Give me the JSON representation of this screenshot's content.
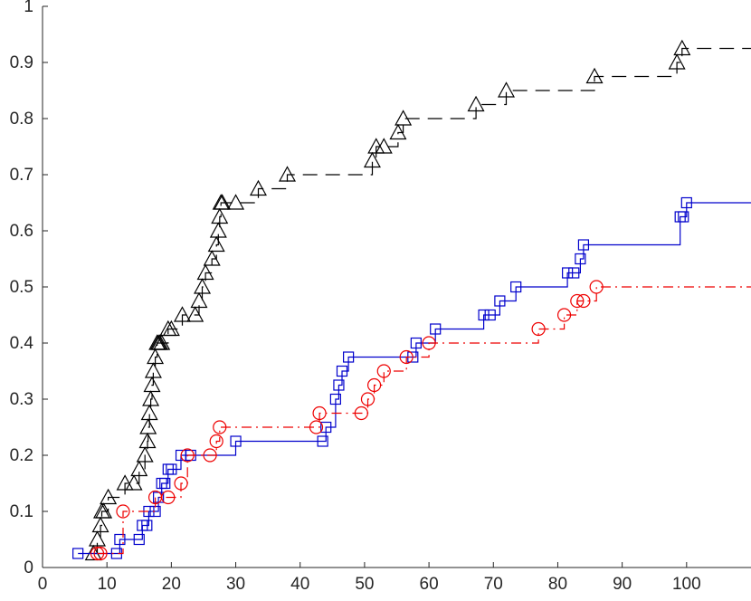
{
  "chart_data": {
    "type": "line",
    "step": true,
    "xlim": [
      0,
      110
    ],
    "ylim": [
      0,
      1
    ],
    "x_ticks": [
      "0",
      "10",
      "20",
      "30",
      "40",
      "50",
      "60",
      "70",
      "80",
      "90",
      "100"
    ],
    "y_ticks": [
      "0",
      "0.1",
      "0.2",
      "0.3",
      "0.4",
      "0.5",
      "0.6",
      "0.7",
      "0.8",
      "0.9",
      "1"
    ],
    "x_tick_values": [
      0,
      10,
      20,
      30,
      40,
      50,
      60,
      70,
      80,
      90,
      100
    ],
    "y_tick_values": [
      0,
      0.1,
      0.2,
      0.3,
      0.4,
      0.5,
      0.6,
      0.7,
      0.8,
      0.9,
      1
    ],
    "grid": false,
    "series": [
      {
        "color": "#000000",
        "line_style": "dashed",
        "marker": "triangle",
        "x": [
          7.9,
          8.5,
          9.0,
          9.2,
          9.5,
          10.2,
          12.8,
          14.2,
          15.0,
          15.9,
          16.3,
          16.4,
          16.6,
          16.8,
          17.0,
          17.2,
          17.5,
          17.8,
          18.0,
          18.2,
          18.5,
          19.5,
          20.0,
          21.7,
          23.7,
          24.3,
          24.8,
          25.3,
          26.3,
          27.0,
          27.3,
          27.5,
          27.7,
          27.9,
          30.0,
          33.5,
          38.0,
          51.2,
          51.8,
          53.0,
          55.2,
          56.0,
          67.3,
          72.0,
          85.7,
          98.5,
          99.3
        ],
        "y": [
          0.025,
          0.05,
          0.075,
          0.1,
          0.1,
          0.125,
          0.15,
          0.15,
          0.175,
          0.2,
          0.225,
          0.25,
          0.275,
          0.3,
          0.325,
          0.35,
          0.375,
          0.4,
          0.4,
          0.4,
          0.4,
          0.425,
          0.425,
          0.45,
          0.45,
          0.475,
          0.5,
          0.525,
          0.55,
          0.575,
          0.6,
          0.625,
          0.65,
          0.65,
          0.65,
          0.675,
          0.7,
          0.725,
          0.75,
          0.75,
          0.775,
          0.8,
          0.825,
          0.85,
          0.875,
          0.9,
          0.925
        ]
      },
      {
        "color": "#0000cc",
        "line_style": "solid",
        "marker": "square",
        "x": [
          5.5,
          11.5,
          12.0,
          15.0,
          15.5,
          16.2,
          16.5,
          17.5,
          18.0,
          18.5,
          19.0,
          19.5,
          20.0,
          21.5,
          23.0,
          30.0,
          43.5,
          44.0,
          45.5,
          46.0,
          46.5,
          47.5,
          57.5,
          58.0,
          61.0,
          68.5,
          69.5,
          71.0,
          73.5,
          81.5,
          82.5,
          83.5,
          84.0,
          99.0,
          99.5,
          100.0
        ],
        "y": [
          0.025,
          0.025,
          0.05,
          0.05,
          0.075,
          0.075,
          0.1,
          0.1,
          0.125,
          0.15,
          0.15,
          0.175,
          0.175,
          0.2,
          0.2,
          0.225,
          0.225,
          0.25,
          0.3,
          0.325,
          0.35,
          0.375,
          0.375,
          0.4,
          0.425,
          0.45,
          0.45,
          0.475,
          0.5,
          0.525,
          0.525,
          0.55,
          0.575,
          0.625,
          0.625,
          0.65
        ]
      },
      {
        "color": "#ee0000",
        "line_style": "dashdot",
        "marker": "circle",
        "x": [
          8.5,
          9.0,
          12.5,
          17.5,
          19.5,
          21.5,
          22.5,
          26.0,
          27.0,
          27.5,
          42.5,
          43.0,
          49.5,
          50.5,
          51.5,
          53.0,
          56.5,
          60.0,
          77.0,
          81.0,
          83.0,
          84.0,
          86.0
        ],
        "y": [
          0.025,
          0.025,
          0.1,
          0.125,
          0.125,
          0.15,
          0.2,
          0.2,
          0.225,
          0.25,
          0.25,
          0.275,
          0.275,
          0.3,
          0.325,
          0.35,
          0.375,
          0.4,
          0.425,
          0.45,
          0.475,
          0.475,
          0.5
        ]
      }
    ]
  }
}
